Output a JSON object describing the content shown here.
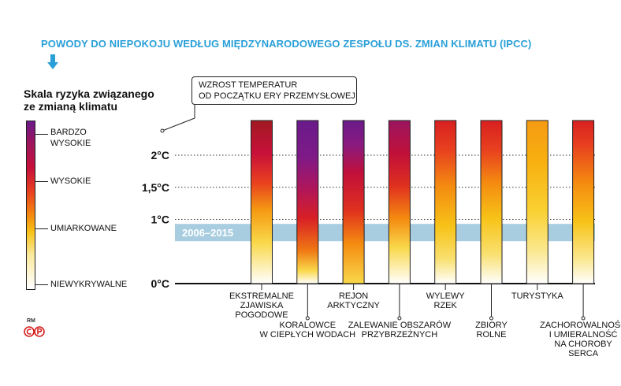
{
  "header": {
    "title": "POWODY DO NIEPOKOJU WEDŁUG MIĘDZYNARODOWEGO ZESPOŁU DS. ZMIAN KLIMATU (IPCC)"
  },
  "scale": {
    "title_line1": "Skala ryzyka związanego",
    "title_line2": "ze zmianą klimatu",
    "levels": [
      {
        "label_line1": "BARDZO",
        "label_line2": "WYSOKIE"
      },
      {
        "label_line1": "WYSOKIE",
        "label_line2": ""
      },
      {
        "label_line1": "UMIARKOWANE",
        "label_line2": ""
      },
      {
        "label_line1": "NIEWYKRYWALNE",
        "label_line2": ""
      }
    ]
  },
  "callout": {
    "line1": "WZROST TEMPERATUR",
    "line2": "OD POCZĄTKU ERY PRZEMYSŁOWEJ"
  },
  "credit": {
    "rm": "RM"
  },
  "colors": {
    "title": "#2a9fd8",
    "band": "#a8cde0",
    "risk_very_high": "#6a1a8a",
    "risk_high": "#c8103a",
    "risk_moderate": "#f48a10",
    "risk_low": "#f7c318",
    "risk_undetectable": "#ffffff"
  },
  "chart_data": {
    "type": "bar",
    "ylim": [
      0,
      2.35
    ],
    "ticks": [
      {
        "value": 0,
        "label": "0°C"
      },
      {
        "value": 1,
        "label": "1°C"
      },
      {
        "value": 1.5,
        "label": "1,5°C"
      },
      {
        "value": 2,
        "label": "2°C"
      }
    ],
    "band": {
      "label": "2006–2015",
      "from": 0.66,
      "to": 0.93
    },
    "categories": [
      {
        "lines": [
          "EKSTREMALNE",
          "ZJAWISKA",
          "POGODOWE"
        ],
        "label_pos": "up",
        "stops": [
          [
            0,
            "#ffffff"
          ],
          [
            0.25,
            "#f9d84a"
          ],
          [
            0.45,
            "#f59a12"
          ],
          [
            0.62,
            "#e8401f"
          ],
          [
            0.8,
            "#c8103a"
          ],
          [
            1,
            "#a01a22"
          ]
        ]
      },
      {
        "lines": [
          "KORALOWCE",
          "W CIEPŁYCH WODACH"
        ],
        "label_pos": "down",
        "stops": [
          [
            0,
            "#ffffff"
          ],
          [
            0.08,
            "#f9d84a"
          ],
          [
            0.2,
            "#f07a14"
          ],
          [
            0.4,
            "#d82025"
          ],
          [
            0.58,
            "#b0165a"
          ],
          [
            0.78,
            "#7e1a88"
          ],
          [
            1,
            "#6a1a8a"
          ]
        ]
      },
      {
        "lines": [
          "REJON",
          "ARKTYCZNY"
        ],
        "label_pos": "up",
        "stops": [
          [
            0,
            "#f9d84a"
          ],
          [
            0.25,
            "#f48a10"
          ],
          [
            0.45,
            "#e0301f"
          ],
          [
            0.68,
            "#c0103a"
          ],
          [
            0.85,
            "#8a1a80"
          ],
          [
            1,
            "#6a1a8a"
          ]
        ]
      },
      {
        "lines": [
          "ZALEWANIE OBSZARÓW",
          "PRZYBRZEŻNYCH"
        ],
        "label_pos": "down",
        "stops": [
          [
            0,
            "#ffffff"
          ],
          [
            0.22,
            "#f9d84a"
          ],
          [
            0.4,
            "#f48a10"
          ],
          [
            0.6,
            "#e0301f"
          ],
          [
            0.8,
            "#c0103a"
          ],
          [
            1,
            "#9a1560"
          ]
        ]
      },
      {
        "lines": [
          "WYLEWY",
          "RZEK"
        ],
        "label_pos": "up",
        "stops": [
          [
            0,
            "#ffffff"
          ],
          [
            0.15,
            "#f9e070"
          ],
          [
            0.35,
            "#f7c318"
          ],
          [
            0.6,
            "#f48a10"
          ],
          [
            0.82,
            "#e8401f"
          ],
          [
            1,
            "#d82020"
          ]
        ]
      },
      {
        "lines": [
          "ZBIORY",
          "ROLNE"
        ],
        "label_pos": "down",
        "stops": [
          [
            0,
            "#ffffff"
          ],
          [
            0.18,
            "#f9e070"
          ],
          [
            0.4,
            "#f7c318"
          ],
          [
            0.62,
            "#f48a10"
          ],
          [
            0.82,
            "#e8401f"
          ],
          [
            1,
            "#d82020"
          ]
        ]
      },
      {
        "lines": [
          "TURYSTYKA"
        ],
        "label_pos": "up",
        "stops": [
          [
            0,
            "#ffffff"
          ],
          [
            0.2,
            "#fbe890"
          ],
          [
            0.45,
            "#f9d030"
          ],
          [
            0.75,
            "#f7b010"
          ],
          [
            1,
            "#f59a12"
          ]
        ]
      },
      {
        "lines": [
          "ZACHOROWALNOŚĆ",
          "I UMIERALNOŚĆ",
          "NA CHOROBY",
          "SERCA"
        ],
        "label_pos": "down",
        "stops": [
          [
            0,
            "#ffffff"
          ],
          [
            0.15,
            "#fbe890"
          ],
          [
            0.38,
            "#f7c318"
          ],
          [
            0.62,
            "#f48a10"
          ],
          [
            0.85,
            "#e8401f"
          ],
          [
            1,
            "#d82020"
          ]
        ]
      }
    ]
  }
}
